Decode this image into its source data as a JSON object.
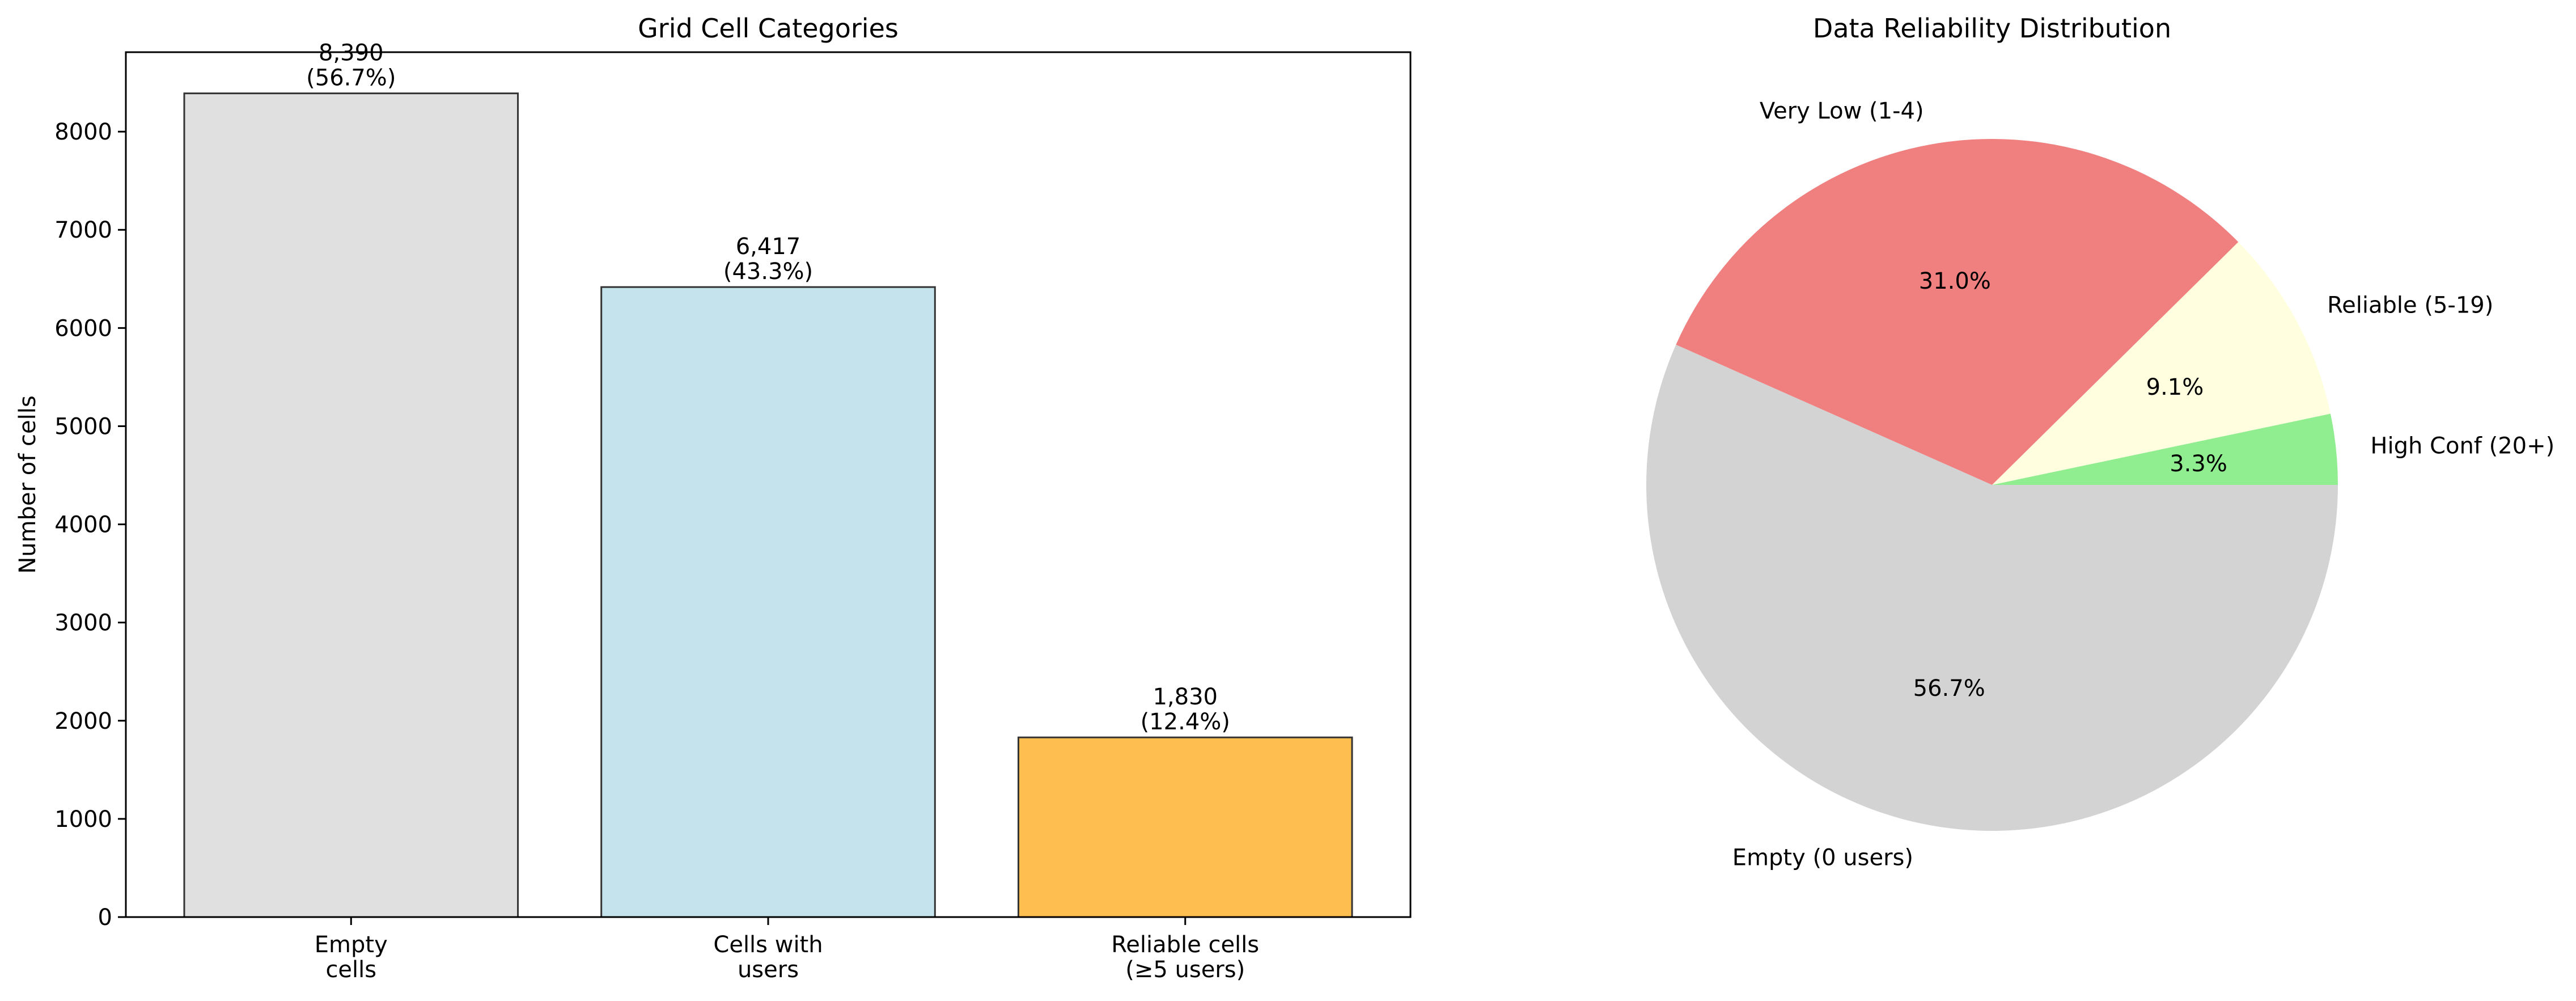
{
  "chart_data": [
    {
      "type": "bar",
      "title": "Grid Cell Categories",
      "xlabel": "",
      "ylabel": "Number of cells",
      "ylim": [
        0,
        8809.5
      ],
      "yticks": [
        0,
        1000,
        2000,
        3000,
        4000,
        5000,
        6000,
        7000,
        8000
      ],
      "grid": false,
      "categories": [
        [
          "Empty",
          "cells"
        ],
        [
          "Cells with",
          "users"
        ],
        [
          "Reliable cells",
          "(≥5 users)"
        ]
      ],
      "values": [
        8390,
        6417,
        1830
      ],
      "data_labels": [
        [
          "8,390",
          "(56.7%)"
        ],
        [
          "6,417",
          "(43.3%)"
        ],
        [
          "1,830",
          "(12.4%)"
        ]
      ],
      "colors": [
        "#e0e0e0",
        "#c5e3ec",
        "#ffbf50"
      ],
      "edge_color": "#333333"
    },
    {
      "type": "pie",
      "title": "Data Reliability Distribution",
      "start_angle_deg": 0,
      "direction": "clockwise",
      "slices": [
        {
          "label": "Empty (0 users)",
          "value": 56.7,
          "pct_label": "56.7%",
          "color": "#d3d3d3"
        },
        {
          "label": "Very Low (1-4)",
          "value": 31.0,
          "pct_label": "31.0%",
          "color": "#f08080"
        },
        {
          "label": "Reliable (5-19)",
          "value": 9.1,
          "pct_label": "9.1%",
          "color": "#ffffe0"
        },
        {
          "label": "High Conf (20+)",
          "value": 3.3,
          "pct_label": "3.3%",
          "color": "#90ee90"
        }
      ]
    }
  ]
}
